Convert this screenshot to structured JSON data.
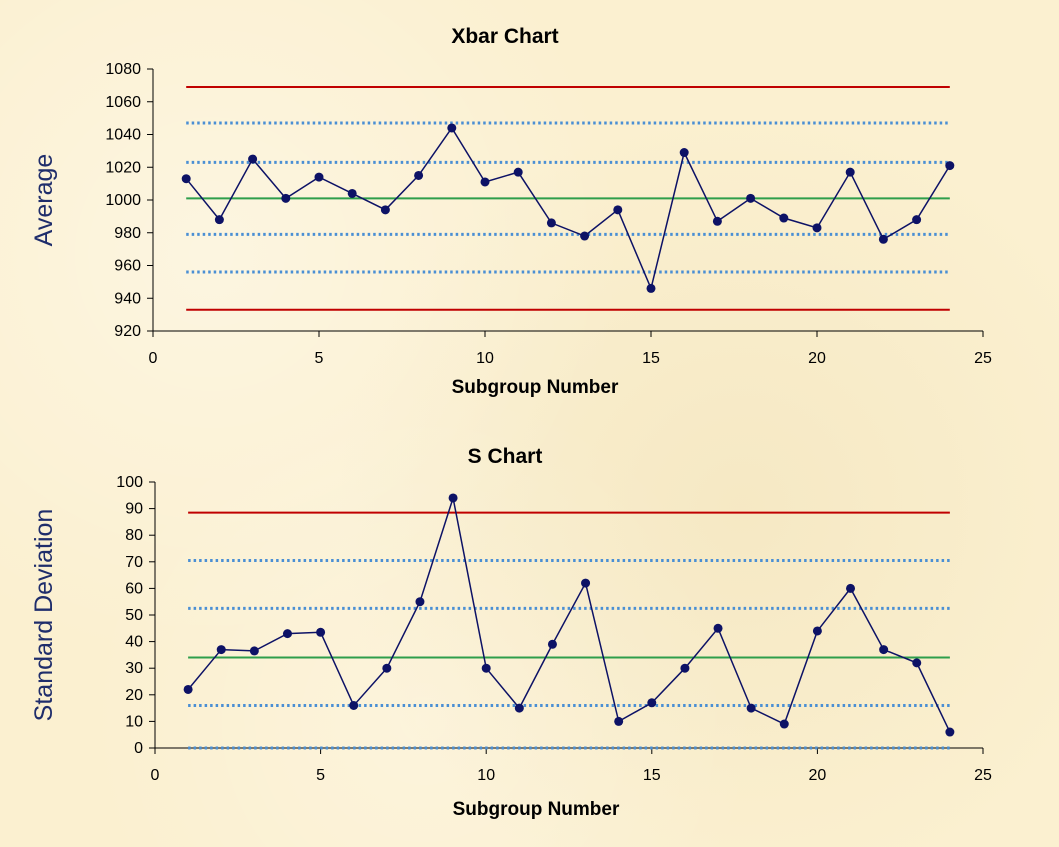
{
  "colors": {
    "background": "#fbf0d0",
    "data_line": "#0d1266",
    "data_point": "#0d1266",
    "control_limit": "#c00000",
    "center_line": "#2e9e4b",
    "sigma_line": "#4a8fd4",
    "axis": "#000000"
  },
  "chart_data": [
    {
      "id": "xbar",
      "type": "line",
      "title": "Xbar Chart",
      "xlabel": "Subgroup Number",
      "ylabel": "Average",
      "xlim": [
        0,
        25
      ],
      "ylim": [
        920,
        1080
      ],
      "xticks": [
        0,
        5,
        10,
        15,
        20,
        25
      ],
      "yticks": [
        920,
        940,
        960,
        980,
        1000,
        1020,
        1040,
        1060,
        1080
      ],
      "x": [
        1,
        2,
        3,
        4,
        5,
        6,
        7,
        8,
        9,
        10,
        11,
        12,
        13,
        14,
        15,
        16,
        17,
        18,
        19,
        20,
        21,
        22,
        23,
        24
      ],
      "series": [
        {
          "values": [
            1013,
            988,
            1025,
            1001,
            1014,
            1004,
            994,
            1015,
            1044,
            1011,
            1017,
            986,
            978,
            994,
            946,
            1029,
            987,
            1001,
            989,
            983,
            1017,
            976,
            988,
            1021
          ]
        }
      ],
      "reference_lines": {
        "control_limits": [
          1069,
          933
        ],
        "center_line": 1001,
        "sigma_lines": [
          1047,
          1023,
          979,
          956
        ],
        "x_range": [
          1,
          24
        ]
      }
    },
    {
      "id": "s",
      "type": "line",
      "title": "S Chart",
      "xlabel": "Subgroup Number",
      "ylabel": "Standard Deviation",
      "xlim": [
        0,
        25
      ],
      "ylim": [
        0,
        100
      ],
      "xticks": [
        0,
        5,
        10,
        15,
        20,
        25
      ],
      "yticks": [
        0,
        10,
        20,
        30,
        40,
        50,
        60,
        70,
        80,
        90,
        100
      ],
      "x": [
        1,
        2,
        3,
        4,
        5,
        6,
        7,
        8,
        9,
        10,
        11,
        12,
        13,
        14,
        15,
        16,
        17,
        18,
        19,
        20,
        21,
        22,
        23,
        24
      ],
      "series": [
        {
          "values": [
            22,
            37,
            36.5,
            43,
            43.5,
            16,
            30,
            55,
            94,
            30,
            15,
            39,
            62,
            10,
            17,
            30,
            45,
            15,
            9,
            44,
            60,
            37,
            32,
            6
          ]
        }
      ],
      "reference_lines": {
        "control_limits": [
          88.5
        ],
        "center_line": 34,
        "sigma_lines": [
          70.5,
          52.5,
          16,
          0
        ],
        "x_range": [
          1,
          24
        ]
      }
    }
  ]
}
